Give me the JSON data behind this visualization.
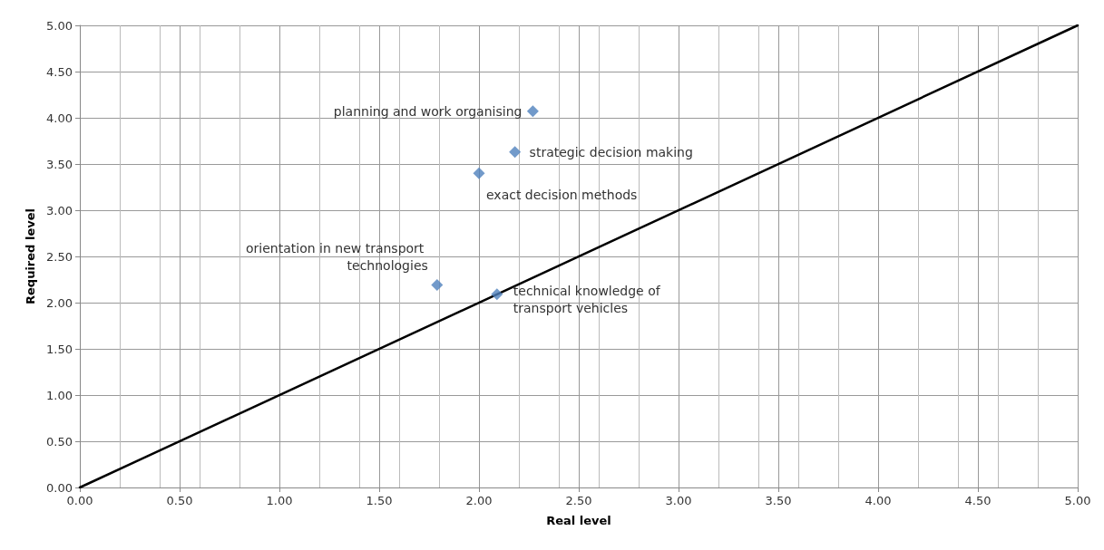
{
  "chart_data": {
    "type": "scatter",
    "xlabel": "Real level",
    "ylabel": "Required level",
    "xlim": [
      0,
      5
    ],
    "ylim": [
      0,
      5
    ],
    "xticks": [
      {
        "value": 0,
        "label": "0.00"
      },
      {
        "value": 0.5,
        "label": "0.50"
      },
      {
        "value": 1,
        "label": "1.00"
      },
      {
        "value": 1.5,
        "label": "1.50"
      },
      {
        "value": 2,
        "label": "2.00"
      },
      {
        "value": 2.5,
        "label": "2.50"
      },
      {
        "value": 3,
        "label": "3.00"
      },
      {
        "value": 3.5,
        "label": "3.50"
      },
      {
        "value": 4,
        "label": "4.00"
      },
      {
        "value": 4.5,
        "label": "4.50"
      },
      {
        "value": 5,
        "label": "5.00"
      }
    ],
    "yticks": [
      {
        "value": 0,
        "label": "0.00"
      },
      {
        "value": 0.5,
        "label": "0.50"
      },
      {
        "value": 1,
        "label": "1.00"
      },
      {
        "value": 1.5,
        "label": "1.50"
      },
      {
        "value": 2,
        "label": "2.00"
      },
      {
        "value": 2.5,
        "label": "2.50"
      },
      {
        "value": 3,
        "label": "3.00"
      },
      {
        "value": 3.5,
        "label": "3.50"
      },
      {
        "value": 4,
        "label": "4.00"
      },
      {
        "value": 4.5,
        "label": "4.50"
      },
      {
        "value": 5,
        "label": "5.00"
      }
    ],
    "grid": true,
    "series": [
      {
        "color": "#4f81bd",
        "marker": "diamond",
        "x": [
          2.27,
          2.18,
          2.0,
          1.79,
          2.09
        ],
        "values": [
          4.07,
          3.63,
          3.4,
          2.19,
          2.09
        ]
      },
      {
        "type": "line",
        "color": "#000000",
        "marker": "none",
        "line_style": "solid",
        "x": [
          0,
          5
        ],
        "values": [
          0,
          5
        ]
      }
    ],
    "annotations": [
      {
        "text": "planning and work organising",
        "x": 2.27,
        "y": 4.07
      },
      {
        "text": "strategic decision making",
        "x": 2.18,
        "y": 3.63
      },
      {
        "text": "exact decision methods",
        "x": 2.0,
        "y": 3.4
      },
      {
        "text": "orientation in new transport technologies",
        "x": 1.79,
        "y": 2.19
      },
      {
        "text": "technical knowledge of transport vehicles",
        "x": 2.09,
        "y": 2.09
      }
    ]
  }
}
